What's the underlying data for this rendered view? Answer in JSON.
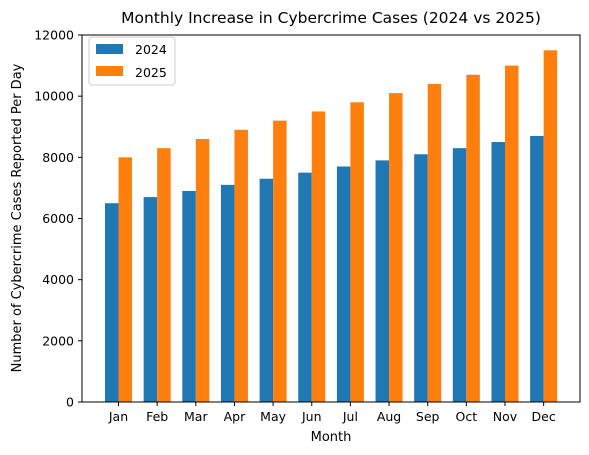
{
  "chart_data": {
    "type": "bar",
    "title": "Monthly Increase in Cybercrime Cases (2024 vs 2025)",
    "xlabel": "Month",
    "ylabel": "Number of Cybercrime Cases Reported Per Day",
    "categories": [
      "Jan",
      "Feb",
      "Mar",
      "Apr",
      "May",
      "Jun",
      "Jul",
      "Aug",
      "Sep",
      "Oct",
      "Nov",
      "Dec"
    ],
    "series": [
      {
        "name": "2024",
        "color": "#1f77b4",
        "values": [
          6500,
          6700,
          6900,
          7100,
          7300,
          7500,
          7700,
          7900,
          8100,
          8300,
          8500,
          8700
        ]
      },
      {
        "name": "2025",
        "color": "#ff7f0e",
        "values": [
          8000,
          8300,
          8600,
          8900,
          9200,
          9500,
          9800,
          10100,
          10400,
          10700,
          11000,
          11500
        ]
      }
    ],
    "ylim": [
      0,
      12000
    ],
    "yticks": [
      "0",
      "2000",
      "4000",
      "6000",
      "8000",
      "10000",
      "12000"
    ],
    "grid": false,
    "legend_position": "top-left"
  }
}
